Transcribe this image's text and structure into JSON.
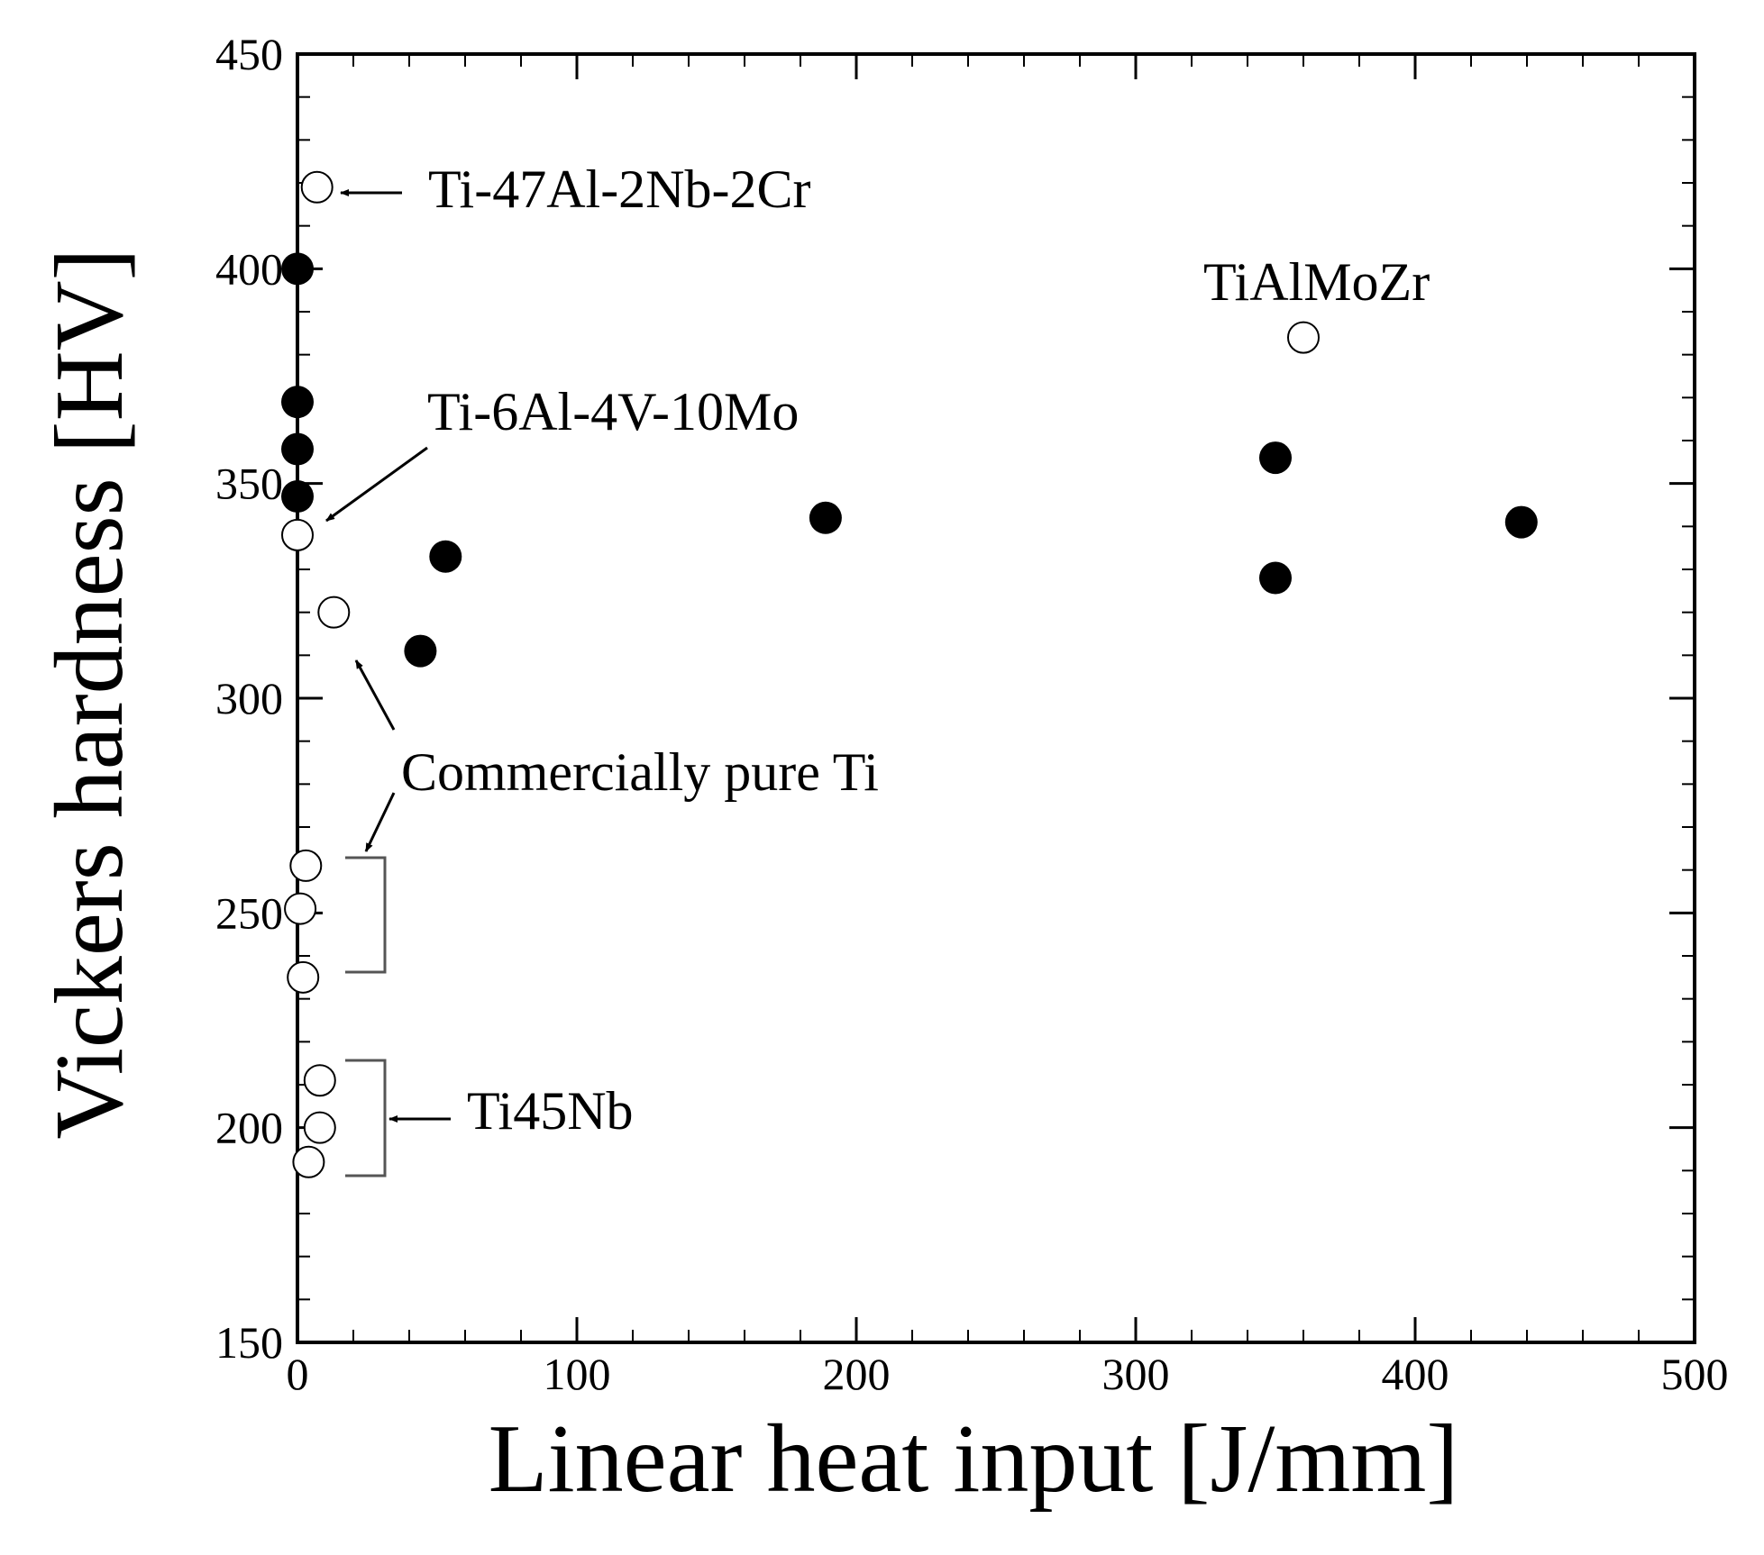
{
  "chart_data": {
    "type": "scatter",
    "xlabel": "Linear heat input [J/mm]",
    "ylabel": "Vickers hardness [HV]",
    "xlim": [
      0,
      500
    ],
    "ylim": [
      150,
      450
    ],
    "grid": false,
    "x_ticks": [
      0,
      100,
      200,
      300,
      400,
      500
    ],
    "y_ticks": [
      150,
      200,
      250,
      300,
      350,
      400,
      450
    ],
    "series": [
      {
        "name": "filled",
        "marker": "filled-circle",
        "x": [
          0,
          0,
          0,
          0,
          44,
          53,
          189,
          350,
          350,
          438
        ],
        "y": [
          400,
          369,
          358,
          347,
          311,
          333,
          342,
          356,
          328,
          341
        ]
      },
      {
        "name": "open",
        "marker": "open-circle",
        "x": [
          7,
          0,
          13,
          360,
          3,
          1,
          2,
          8,
          8,
          4
        ],
        "y": [
          419,
          338,
          320,
          384,
          261,
          251,
          235,
          211,
          200,
          192
        ]
      }
    ],
    "annotations": [
      {
        "text": "Ti-47Al-2Nb-2Cr"
      },
      {
        "text": "TiAlMoZr"
      },
      {
        "text": "Ti-6Al-4V-10Mo"
      },
      {
        "text": "Commercially pure Ti"
      },
      {
        "text": "Ti45Nb"
      }
    ]
  }
}
